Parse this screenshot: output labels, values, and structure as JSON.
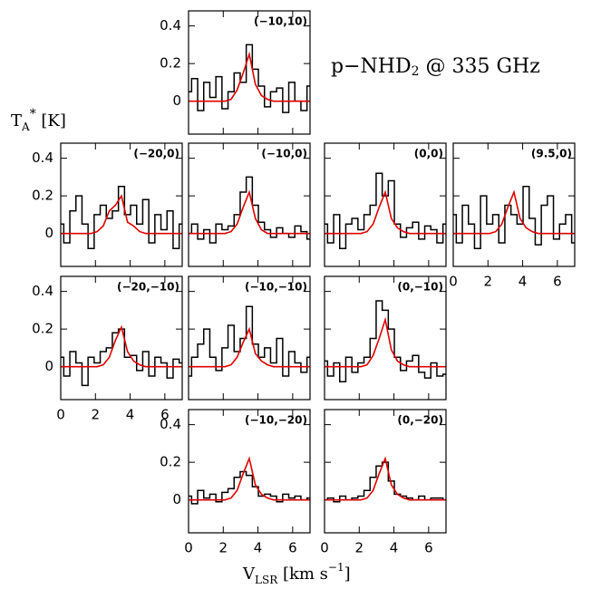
{
  "figure": {
    "title": [
      "p−NHD",
      "2",
      " @ 335 GHz"
    ],
    "ylabel": [
      "T",
      "A",
      "*",
      " [K]"
    ],
    "xlabel": [
      "V",
      "LSR",
      " [km s",
      "−1",
      "]"
    ]
  },
  "chart_data": [
    {
      "type": "step",
      "title": "(−10,10)",
      "x": [
        0,
        0.35,
        0.7,
        1.05,
        1.4,
        1.75,
        2.1,
        2.45,
        2.8,
        3.15,
        3.5,
        3.85,
        4.2,
        4.55,
        4.9,
        5.25,
        5.6,
        5.95,
        6.3,
        6.65,
        7.0
      ],
      "series": [
        {
          "color": "#000000",
          "values": [
            0.05,
            0.12,
            -0.05,
            0.1,
            0.02,
            0.13,
            -0.04,
            0.05,
            0.15,
            0.1,
            0.3,
            0.17,
            0.08,
            -0.03,
            0.05,
            0.07,
            -0.06,
            0.1,
            0,
            -0.05,
            0.08
          ]
        },
        {
          "color": "#e00000",
          "values": [
            0,
            0,
            0,
            0,
            0,
            0,
            0,
            0.01,
            0.06,
            0.15,
            0.25,
            0.09,
            0.03,
            0.01,
            0,
            0,
            0,
            0,
            0,
            0,
            0
          ]
        }
      ],
      "xlim": [
        0,
        7
      ],
      "xticks": [
        0,
        2,
        4,
        6
      ],
      "ylim": [
        -0.175,
        0.48
      ],
      "yticks": [
        0,
        0.2,
        0.4
      ]
    },
    {
      "type": "step",
      "title": "(−20,0)",
      "x": [
        0,
        0.35,
        0.7,
        1.05,
        1.4,
        1.75,
        2.1,
        2.45,
        2.8,
        3.15,
        3.5,
        3.85,
        4.2,
        4.55,
        4.9,
        5.25,
        5.6,
        5.95,
        6.3,
        6.65,
        7.0
      ],
      "series": [
        {
          "color": "#000000",
          "values": [
            0.05,
            -0.05,
            0.12,
            0.2,
            0.05,
            -0.08,
            0.1,
            0.15,
            0.08,
            0.12,
            0.25,
            0.1,
            0.15,
            0.05,
            0.18,
            -0.05,
            0.1,
            0.02,
            0.12,
            -0.08,
            0.05
          ]
        },
        {
          "color": "#e00000",
          "values": [
            0,
            0,
            0,
            0,
            0,
            0,
            0.01,
            0.04,
            0.12,
            0.15,
            0.2,
            0.06,
            0.04,
            0.01,
            0,
            0,
            0,
            0,
            0,
            0,
            0
          ]
        }
      ],
      "xlim": [
        0,
        7
      ],
      "xticks": [
        0,
        2,
        4,
        6
      ],
      "ylim": [
        -0.175,
        0.48
      ],
      "yticks": [
        0,
        0.2,
        0.4
      ]
    },
    {
      "type": "step",
      "title": "(−10,0)",
      "x": [
        0,
        0.35,
        0.7,
        1.05,
        1.4,
        1.75,
        2.1,
        2.45,
        2.8,
        3.15,
        3.5,
        3.85,
        4.2,
        4.55,
        4.9,
        5.25,
        5.6,
        5.95,
        6.3,
        6.65,
        7.0
      ],
      "series": [
        {
          "color": "#000000",
          "values": [
            0,
            0.05,
            -0.03,
            0.02,
            -0.05,
            0.05,
            0.02,
            0.04,
            0.1,
            0.22,
            0.3,
            0.15,
            0.06,
            0.02,
            -0.02,
            0.03,
            0,
            -0.02,
            0.04,
            0.01,
            -0.03
          ]
        },
        {
          "color": "#e00000",
          "values": [
            0,
            0,
            0,
            0,
            0,
            0,
            0,
            0.01,
            0.05,
            0.14,
            0.22,
            0.08,
            0.02,
            0,
            0,
            0,
            0,
            0,
            0,
            0,
            0
          ]
        }
      ],
      "xlim": [
        0,
        7
      ],
      "xticks": [
        0,
        2,
        4,
        6
      ],
      "ylim": [
        -0.175,
        0.48
      ],
      "yticks": [
        0,
        0.2,
        0.4
      ]
    },
    {
      "type": "step",
      "title": "(0,0)",
      "x": [
        0,
        0.35,
        0.7,
        1.05,
        1.4,
        1.75,
        2.1,
        2.45,
        2.8,
        3.15,
        3.5,
        3.85,
        4.2,
        4.55,
        4.9,
        5.25,
        5.6,
        5.95,
        6.3,
        6.65,
        7.0
      ],
      "series": [
        {
          "color": "#000000",
          "values": [
            0.05,
            -0.05,
            0.1,
            -0.08,
            0.05,
            0.08,
            0.02,
            0.1,
            0.15,
            0.32,
            0.2,
            0.28,
            0.05,
            -0.02,
            0.03,
            0.06,
            -0.03,
            0.04,
            0.02,
            -0.05,
            0.05
          ]
        },
        {
          "color": "#e00000",
          "values": [
            0,
            0,
            0,
            0,
            0,
            0,
            0,
            0.01,
            0.05,
            0.14,
            0.22,
            0.08,
            0.03,
            0.01,
            0,
            0,
            0,
            0,
            0,
            0,
            0
          ]
        }
      ],
      "xlim": [
        0,
        7
      ],
      "xticks": [
        0,
        2,
        4,
        6
      ],
      "ylim": [
        -0.175,
        0.48
      ],
      "yticks": [
        0,
        0.2,
        0.4
      ]
    },
    {
      "type": "step",
      "title": "(9.5,0)",
      "x": [
        0,
        0.35,
        0.7,
        1.05,
        1.4,
        1.75,
        2.1,
        2.45,
        2.8,
        3.15,
        3.5,
        3.85,
        4.2,
        4.55,
        4.9,
        5.25,
        5.6,
        5.95,
        6.3,
        6.65,
        7.0
      ],
      "series": [
        {
          "color": "#000000",
          "values": [
            0.1,
            -0.05,
            0.15,
            0.05,
            -0.08,
            0.2,
            0.05,
            0.1,
            -0.05,
            0.15,
            0.1,
            0.05,
            0.25,
            0.08,
            -0.06,
            0.15,
            0.2,
            -0.03,
            0.05,
            0.1,
            -0.05
          ]
        },
        {
          "color": "#e00000",
          "values": [
            0,
            0,
            0,
            0,
            0,
            0,
            0,
            0.01,
            0.05,
            0.14,
            0.22,
            0.08,
            0.03,
            0.01,
            0,
            0,
            0,
            0,
            0,
            0,
            0
          ]
        }
      ],
      "xlim": [
        0,
        7
      ],
      "xticks": [
        0,
        2,
        4,
        6
      ],
      "ylim": [
        -0.175,
        0.48
      ],
      "yticks": [
        0,
        0.2,
        0.4
      ]
    },
    {
      "type": "step",
      "title": "(−20,−10)",
      "x": [
        0,
        0.35,
        0.7,
        1.05,
        1.4,
        1.75,
        2.1,
        2.45,
        2.8,
        3.15,
        3.5,
        3.85,
        4.2,
        4.55,
        4.9,
        5.25,
        5.6,
        5.95,
        6.3,
        6.65,
        7.0
      ],
      "series": [
        {
          "color": "#000000",
          "values": [
            0.05,
            -0.05,
            0.08,
            0.02,
            -0.1,
            0.05,
            0.02,
            0.08,
            0.1,
            0.18,
            0.2,
            0.05,
            0.06,
            -0.02,
            0.08,
            -0.05,
            0.05,
            0.02,
            -0.06,
            0.04,
            0.02
          ]
        },
        {
          "color": "#e00000",
          "values": [
            0,
            0,
            0,
            0,
            0,
            0,
            0,
            0.01,
            0.05,
            0.14,
            0.21,
            0.08,
            0.03,
            0.01,
            0,
            0,
            0,
            0,
            0,
            0,
            0
          ]
        }
      ],
      "xlim": [
        0,
        7
      ],
      "xticks": [
        0,
        2,
        4,
        6
      ],
      "ylim": [
        -0.175,
        0.48
      ],
      "yticks": [
        0,
        0.2,
        0.4
      ]
    },
    {
      "type": "step",
      "title": "(−10,−10)",
      "x": [
        0,
        0.35,
        0.7,
        1.05,
        1.4,
        1.75,
        2.1,
        2.45,
        2.8,
        3.15,
        3.5,
        3.85,
        4.2,
        4.55,
        4.9,
        5.25,
        5.6,
        5.95,
        6.3,
        6.65,
        7.0
      ],
      "series": [
        {
          "color": "#000000",
          "values": [
            -0.05,
            0.05,
            0.12,
            0.2,
            0.05,
            -0.02,
            0.1,
            0.22,
            0.08,
            0.15,
            0.32,
            0.12,
            0.05,
            0.1,
            0.02,
            0.15,
            -0.05,
            0.08,
            0.02,
            -0.03,
            0.05
          ]
        },
        {
          "color": "#e00000",
          "values": [
            0,
            0,
            0,
            0,
            0,
            0,
            0,
            0.01,
            0.05,
            0.13,
            0.2,
            0.07,
            0.03,
            0.01,
            0,
            0,
            0,
            0,
            0,
            0,
            0
          ]
        }
      ],
      "xlim": [
        0,
        7
      ],
      "xticks": [
        0,
        2,
        4,
        6
      ],
      "ylim": [
        -0.175,
        0.48
      ],
      "yticks": [
        0,
        0.2,
        0.4
      ]
    },
    {
      "type": "step",
      "title": "(0,−10)",
      "x": [
        0,
        0.35,
        0.7,
        1.05,
        1.4,
        1.75,
        2.1,
        2.45,
        2.8,
        3.15,
        3.5,
        3.85,
        4.2,
        4.55,
        4.9,
        5.25,
        5.6,
        5.95,
        6.3,
        6.65,
        7.0
      ],
      "series": [
        {
          "color": "#000000",
          "values": [
            0.03,
            -0.05,
            0.02,
            -0.08,
            0.05,
            -0.03,
            0.02,
            0.05,
            0.15,
            0.35,
            0.3,
            0.2,
            0.05,
            -0.02,
            0.03,
            0.06,
            -0.03,
            -0.06,
            0.02,
            -0.05,
            -0.04
          ]
        },
        {
          "color": "#e00000",
          "values": [
            0,
            0,
            0,
            0,
            0,
            0,
            0,
            0.01,
            0.06,
            0.15,
            0.25,
            0.09,
            0.03,
            0.01,
            0,
            0,
            0,
            0,
            0,
            0,
            0
          ]
        }
      ],
      "xlim": [
        0,
        7
      ],
      "xticks": [
        0,
        2,
        4,
        6
      ],
      "ylim": [
        -0.175,
        0.48
      ],
      "yticks": [
        0,
        0.2,
        0.4
      ]
    },
    {
      "type": "step",
      "title": "(−10,−20)",
      "x": [
        0,
        0.35,
        0.7,
        1.05,
        1.4,
        1.75,
        2.1,
        2.45,
        2.8,
        3.15,
        3.5,
        3.85,
        4.2,
        4.55,
        4.9,
        5.25,
        5.6,
        5.95,
        6.3,
        6.65,
        7.0
      ],
      "series": [
        {
          "color": "#000000",
          "values": [
            0.02,
            -0.02,
            0.05,
            0.01,
            0.03,
            -0.01,
            0.04,
            0.06,
            0.12,
            0.15,
            0.13,
            0.07,
            0.02,
            0.03,
            0.02,
            -0.01,
            0.03,
            0.01,
            0.02,
            0,
            0.01
          ]
        },
        {
          "color": "#e00000",
          "values": [
            0,
            0,
            0,
            0,
            0,
            0,
            0,
            0.01,
            0.05,
            0.14,
            0.22,
            0.08,
            0.03,
            0.01,
            0,
            0,
            0,
            0,
            0,
            0,
            0
          ]
        }
      ],
      "xlim": [
        0,
        7
      ],
      "xticks": [
        0,
        2,
        4,
        6
      ],
      "ylim": [
        -0.175,
        0.48
      ],
      "yticks": [
        0,
        0.2,
        0.4
      ]
    },
    {
      "type": "step",
      "title": "(0,−20)",
      "x": [
        0,
        0.35,
        0.7,
        1.05,
        1.4,
        1.75,
        2.1,
        2.45,
        2.8,
        3.15,
        3.5,
        3.85,
        4.2,
        4.55,
        4.9,
        5.25,
        5.6,
        5.95,
        6.3,
        6.65,
        7.0
      ],
      "series": [
        {
          "color": "#000000",
          "values": [
            0,
            0.01,
            -0.01,
            0.02,
            0,
            0.01,
            0.02,
            0.05,
            0.12,
            0.18,
            0.2,
            0.1,
            0.03,
            0.02,
            0.01,
            0,
            0.02,
            0,
            0.01,
            0.01,
            0
          ]
        },
        {
          "color": "#e00000",
          "values": [
            0,
            0,
            0,
            0,
            0,
            0,
            0,
            0.01,
            0.05,
            0.14,
            0.22,
            0.08,
            0.03,
            0.01,
            0,
            0,
            0,
            0,
            0,
            0,
            0
          ]
        }
      ],
      "xlim": [
        0,
        7
      ],
      "xticks": [
        0,
        2,
        4,
        6
      ],
      "ylim": [
        -0.175,
        0.48
      ],
      "yticks": [
        0,
        0.2,
        0.4
      ]
    }
  ]
}
